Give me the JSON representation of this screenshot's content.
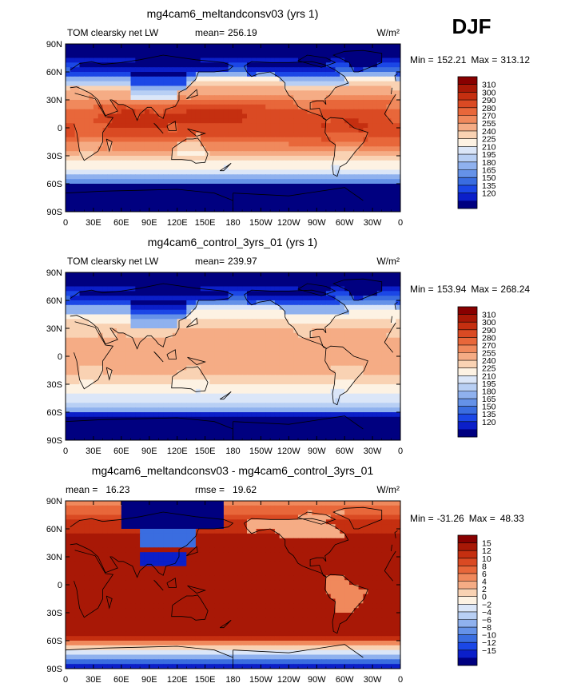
{
  "season": "DJF",
  "x_ticks": [
    "0",
    "30E",
    "60E",
    "90E",
    "120E",
    "150E",
    "180",
    "150W",
    "120W",
    "90W",
    "60W",
    "30W",
    "0"
  ],
  "y_ticks": [
    "90N",
    "60N",
    "30N",
    "0",
    "30S",
    "60S",
    "90S"
  ],
  "colors": {
    "ref": [
      "#000080",
      "#0b1fc9",
      "#1b47e6",
      "#3a6de0",
      "#6592e8",
      "#8fb1ee",
      "#b8cff4",
      "#dbe6f8",
      "#fdf2e3",
      "#f9d2b3",
      "#f5ac85",
      "#f0895c",
      "#e8673a",
      "#da4a23",
      "#c52f10",
      "#a81806",
      "#880000"
    ],
    "diff": [
      "#000080",
      "#0b1fc9",
      "#1b47e6",
      "#3a6de0",
      "#6592e8",
      "#8fb1ee",
      "#b8cff4",
      "#dbe6f8",
      "#fdf2e3",
      "#f9d2b3",
      "#f5ac85",
      "#f0895c",
      "#e8673a",
      "#da4a23",
      "#c52f10",
      "#a81806",
      "#880000"
    ]
  },
  "chart_data": [
    {
      "type": "heatmap",
      "title": "mg4cam6_meltandconsv03 (yrs 1)",
      "left_label": "TOM clearsky net LW",
      "mean_label": "mean=",
      "mean": "256.19",
      "units": "W/m²",
      "min_label": "Min =",
      "min": "152.21",
      "max_label": "Max =",
      "max": "313.12",
      "colorbar_levels": [
        "310",
        "300",
        "290",
        "280",
        "270",
        "255",
        "240",
        "225",
        "210",
        "195",
        "180",
        "165",
        "150",
        "135",
        "120"
      ],
      "xlim": [
        0,
        360
      ],
      "ylim": [
        -90,
        90
      ],
      "field": "case"
    },
    {
      "type": "heatmap",
      "title": "mg4cam6_control_3yrs_01 (yrs 1)",
      "left_label": "TOM clearsky net LW",
      "mean_label": "mean=",
      "mean": "239.97",
      "units": "W/m²",
      "min_label": "Min =",
      "min": "153.94",
      "max_label": "Max =",
      "max": "268.24",
      "colorbar_levels": [
        "310",
        "300",
        "290",
        "280",
        "270",
        "255",
        "240",
        "225",
        "210",
        "195",
        "180",
        "165",
        "150",
        "135",
        "120"
      ],
      "xlim": [
        0,
        360
      ],
      "ylim": [
        -90,
        90
      ],
      "field": "control"
    },
    {
      "type": "heatmap",
      "title": "mg4cam6_meltandconsv03 - mg4cam6_control_3yrs_01",
      "left_label": "mean =",
      "mean": "16.23",
      "rmse_label": "rmse =",
      "rmse": "19.62",
      "units": "W/m²",
      "min_label": "Min =",
      "min": "-31.26",
      "max_label": "Max =",
      "max": "48.33",
      "colorbar_levels": [
        "15",
        "12",
        "10",
        "8",
        "6",
        "4",
        "2",
        "0",
        "−2",
        "−4",
        "−6",
        "−8",
        "−10",
        "−12",
        "−15"
      ],
      "xlim": [
        0,
        360
      ],
      "ylim": [
        -90,
        90
      ],
      "field": "diff"
    }
  ]
}
